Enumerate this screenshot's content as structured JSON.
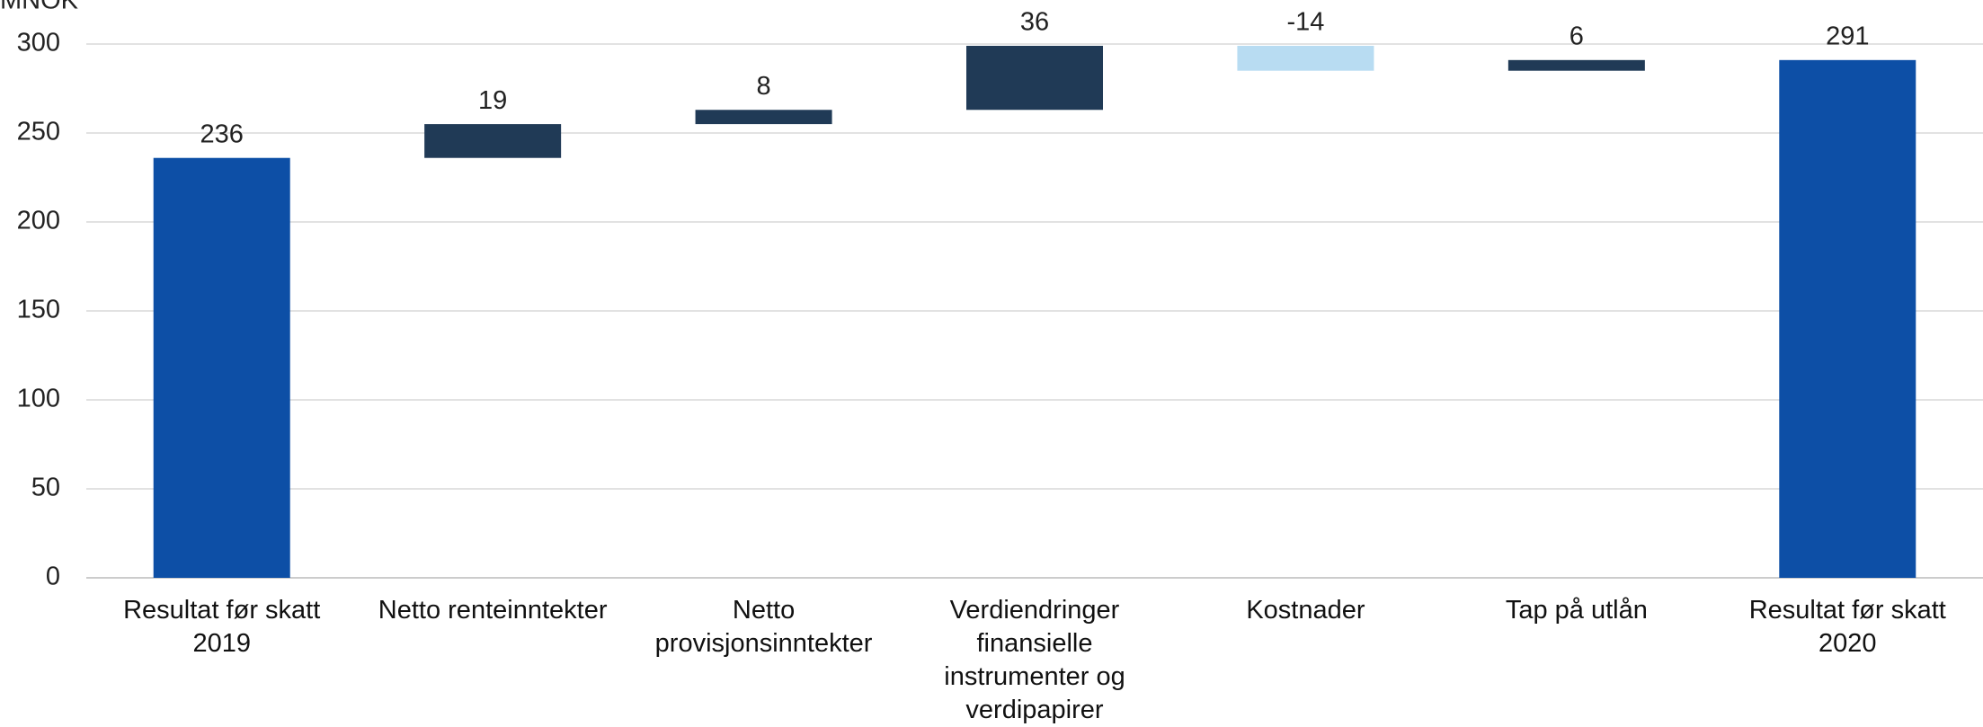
{
  "chart_data": {
    "type": "waterfall",
    "y_label": "MNOK",
    "categories": [
      "Resultat før skatt 2019",
      "Netto renteinntekter",
      "Netto provisjonsinntekter",
      "Verdiendringer finansielle instrumenter og verdipapirer",
      "Kostnader",
      "Tap på utlån",
      "Resultat før skatt 2020"
    ],
    "values": [
      236,
      19,
      8,
      36,
      -14,
      6,
      291
    ],
    "measure": [
      "absolute",
      "relative",
      "relative",
      "relative",
      "relative",
      "relative",
      "total"
    ],
    "colors": [
      "#0d4fa6",
      "#203a56",
      "#203a56",
      "#203a56",
      "#b8dcf2",
      "#203a56",
      "#0d4fa6"
    ],
    "ylim": [
      0,
      300
    ],
    "yticks": [
      0,
      50,
      100,
      150,
      200,
      250,
      300
    ],
    "grid": true
  }
}
